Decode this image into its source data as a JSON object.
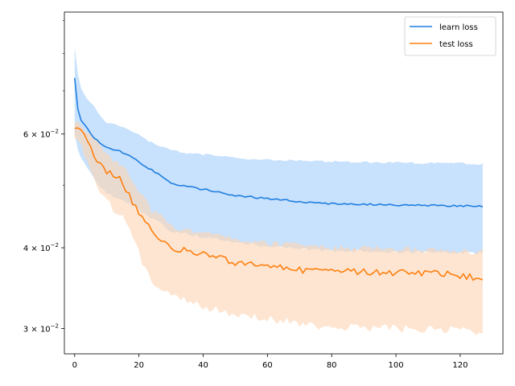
{
  "chart_data": {
    "type": "line",
    "title": "",
    "xlabel": "",
    "ylabel": "",
    "yscale": "log",
    "xlim": [
      -3.2,
      133.3
    ],
    "ylim": [
      0.0274,
      0.0927
    ],
    "grid": false,
    "legend_position": "top-right",
    "x_ticks": [
      0,
      20,
      40,
      60,
      80,
      100,
      120
    ],
    "x_tick_labels": [
      "0",
      "20",
      "40",
      "60",
      "80",
      "100",
      "120"
    ],
    "y_ticks": [
      0.03,
      0.04,
      0.06
    ],
    "y_tick_labels": [
      {
        "base": "3 × 10",
        "exp": "−2"
      },
      {
        "base": "4 × 10",
        "exp": "−2"
      },
      {
        "base": "6 × 10",
        "exp": "−2"
      }
    ],
    "y_minor_ticks": [
      0.05,
      0.07,
      0.08,
      0.09
    ],
    "series": [
      {
        "name": "learn loss",
        "color": "#1f7fe0",
        "band_color": "#b3d6fb",
        "x_anchors": [
          0,
          1,
          2,
          4,
          6,
          8,
          10,
          14,
          18,
          22,
          26,
          30,
          35,
          40,
          50,
          60,
          70,
          80,
          90,
          100,
          110,
          120,
          127
        ],
        "y_anchors": [
          0.0735,
          0.0655,
          0.063,
          0.061,
          0.0592,
          0.0581,
          0.0573,
          0.0565,
          0.0552,
          0.0535,
          0.052,
          0.0503,
          0.0497,
          0.0493,
          0.0482,
          0.0477,
          0.0471,
          0.0468,
          0.0467,
          0.0466,
          0.0465,
          0.0465,
          0.0463
        ],
        "upper_anchors": [
          0.082,
          0.074,
          0.0705,
          0.068,
          0.066,
          0.064,
          0.0625,
          0.0615,
          0.0605,
          0.0588,
          0.0575,
          0.0565,
          0.056,
          0.0557,
          0.055,
          0.0547,
          0.0545,
          0.0543,
          0.0542,
          0.0541,
          0.054,
          0.054,
          0.0538
        ],
        "lower_anchors": [
          0.06,
          0.057,
          0.055,
          0.053,
          0.051,
          0.0495,
          0.0485,
          0.0475,
          0.0465,
          0.045,
          0.0438,
          0.0425,
          0.042,
          0.0415,
          0.0408,
          0.0403,
          0.0398,
          0.0396,
          0.0395,
          0.0394,
          0.0393,
          0.0393,
          0.0392
        ]
      },
      {
        "name": "test loss",
        "color": "#ff7f0e",
        "band_color": "#fdd5b4",
        "x_anchors": [
          0,
          1,
          3,
          5,
          7,
          9,
          12,
          15,
          18,
          21,
          24,
          27,
          30,
          35,
          40,
          50,
          60,
          70,
          80,
          90,
          100,
          110,
          120,
          127
        ],
        "y_anchors": [
          0.0612,
          0.0612,
          0.06,
          0.0575,
          0.0545,
          0.053,
          0.052,
          0.0505,
          0.047,
          0.0445,
          0.0425,
          0.041,
          0.04,
          0.0395,
          0.039,
          0.038,
          0.0375,
          0.037,
          0.0368,
          0.0367,
          0.0366,
          0.0365,
          0.0363,
          0.0357
        ],
        "upper_anchors": [
          0.062,
          0.0618,
          0.0612,
          0.0595,
          0.058,
          0.056,
          0.0545,
          0.053,
          0.0505,
          0.0478,
          0.0455,
          0.0443,
          0.043,
          0.0425,
          0.042,
          0.041,
          0.0405,
          0.04,
          0.0398,
          0.0397,
          0.0396,
          0.0395,
          0.0394,
          0.0392
        ],
        "lower_anchors": [
          0.06,
          0.059,
          0.056,
          0.0525,
          0.0495,
          0.0475,
          0.046,
          0.0445,
          0.0415,
          0.038,
          0.0355,
          0.0345,
          0.0335,
          0.033,
          0.0323,
          0.0315,
          0.031,
          0.0305,
          0.0302,
          0.03,
          0.03,
          0.0299,
          0.0298,
          0.0295
        ]
      }
    ]
  }
}
